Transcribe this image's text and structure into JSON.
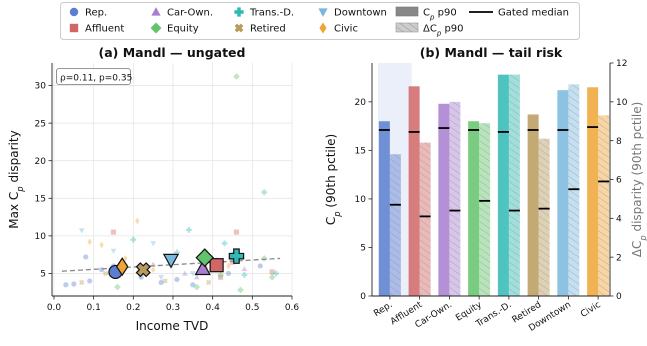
{
  "colors": {
    "Rep.": "#5b7fd0",
    "Affluent": "#d16667",
    "Car-Own.": "#a77ed0",
    "Equity": "#62c36a",
    "Trans.-D.": "#2fb9b4",
    "Retired": "#b89a5c",
    "Downtown": "#7ab7dd",
    "Civic": "#eea535"
  },
  "legend": {
    "groups": [
      {
        "label": "Rep.",
        "marker": "circle",
        "color": "Rep."
      },
      {
        "label": "Affluent",
        "marker": "square",
        "color": "Affluent"
      },
      {
        "label": "Car-Own.",
        "marker": "triangle-up",
        "color": "Car-Own."
      },
      {
        "label": "Equity",
        "marker": "diamond",
        "color": "Equity"
      },
      {
        "label": "Trans.-D.",
        "marker": "plus",
        "color": "Trans.-D."
      },
      {
        "label": "Retired",
        "marker": "x",
        "color": "Retired"
      },
      {
        "label": "Downtown",
        "marker": "triangle-down",
        "color": "Downtown"
      },
      {
        "label": "Civic",
        "marker": "diamond-thin",
        "color": "Civic"
      }
    ],
    "cp_label": "C",
    "cp_sub": "p",
    "cp_tail": " p90",
    "dcp_label": "ΔC",
    "dcp_sub": "p",
    "dcp_tail": " p90",
    "median_label": "Gated median"
  },
  "chart_data": [
    {
      "type": "scatter",
      "title": "(a) Mandl — ungated",
      "xlabel": "Income TVD",
      "ylabel_main": "Max C",
      "ylabel_sub": "p",
      "ylabel_tail": " disparity",
      "xlim": [
        -0.005,
        0.6
      ],
      "ylim": [
        2,
        33
      ],
      "xticks": [
        0.0,
        0.1,
        0.2,
        0.3,
        0.4,
        0.5,
        0.6
      ],
      "xtick_labels": [
        "0.0",
        "0.1",
        "0.2",
        "0.3",
        "0.4",
        "0.5",
        "0.6"
      ],
      "yticks": [
        5,
        10,
        15,
        20,
        25,
        30
      ],
      "ytick_labels": [
        "5",
        "10",
        "15",
        "20",
        "25",
        "30"
      ],
      "grid": true,
      "annotation": "ρ=0.11, p=0.35",
      "trend_line": {
        "x": [
          0.02,
          0.57
        ],
        "y": [
          5.3,
          7.0
        ]
      },
      "small_points": [
        {
          "g": "Rep.",
          "x": 0.03,
          "y": 3.5
        },
        {
          "g": "Rep.",
          "x": 0.05,
          "y": 3.6
        },
        {
          "g": "Rep.",
          "x": 0.09,
          "y": 4.0
        },
        {
          "g": "Rep.",
          "x": 0.12,
          "y": 5.5
        },
        {
          "g": "Rep.",
          "x": 0.15,
          "y": 6.0
        },
        {
          "g": "Rep.",
          "x": 0.22,
          "y": 4.5
        },
        {
          "g": "Rep.",
          "x": 0.27,
          "y": 3.8
        },
        {
          "g": "Rep.",
          "x": 0.31,
          "y": 4.2
        },
        {
          "g": "Rep.",
          "x": 0.35,
          "y": 3.5
        },
        {
          "g": "Rep.",
          "x": 0.44,
          "y": 5.0
        },
        {
          "g": "Rep.",
          "x": 0.52,
          "y": 6.0
        },
        {
          "g": "Rep.",
          "x": 0.08,
          "y": 7.2
        },
        {
          "g": "Affluent",
          "x": 0.15,
          "y": 10.5
        },
        {
          "g": "Affluent",
          "x": 0.38,
          "y": 5.8
        },
        {
          "g": "Affluent",
          "x": 0.45,
          "y": 6.5
        },
        {
          "g": "Affluent",
          "x": 0.46,
          "y": 10.5
        },
        {
          "g": "Affluent",
          "x": 0.42,
          "y": 4.5
        },
        {
          "g": "Affluent",
          "x": 0.55,
          "y": 5.2
        },
        {
          "g": "Car-Own.",
          "x": 0.25,
          "y": 6.2
        },
        {
          "g": "Car-Own.",
          "x": 0.33,
          "y": 5.0
        },
        {
          "g": "Car-Own.",
          "x": 0.41,
          "y": 6.8
        },
        {
          "g": "Car-Own.",
          "x": 0.36,
          "y": 4.5
        },
        {
          "g": "Car-Own.",
          "x": 0.48,
          "y": 5.6
        },
        {
          "g": "Equity",
          "x": 0.46,
          "y": 31.2
        },
        {
          "g": "Equity",
          "x": 0.38,
          "y": 8.0
        },
        {
          "g": "Equity",
          "x": 0.42,
          "y": 4.8
        },
        {
          "g": "Equity",
          "x": 0.55,
          "y": 4.5
        },
        {
          "g": "Equity",
          "x": 0.36,
          "y": 3.2
        },
        {
          "g": "Equity",
          "x": 0.47,
          "y": 2.8
        },
        {
          "g": "Equity",
          "x": 0.53,
          "y": 7.0
        },
        {
          "g": "Equity",
          "x": 0.16,
          "y": 3.2
        },
        {
          "g": "Trans.-D.",
          "x": 0.53,
          "y": 15.8
        },
        {
          "g": "Trans.-D.",
          "x": 0.34,
          "y": 10.8
        },
        {
          "g": "Trans.-D.",
          "x": 0.43,
          "y": 9.0
        },
        {
          "g": "Trans.-D.",
          "x": 0.48,
          "y": 4.8
        },
        {
          "g": "Trans.-D.",
          "x": 0.2,
          "y": 9.5
        },
        {
          "g": "Trans.-D.",
          "x": 0.31,
          "y": 7.8
        },
        {
          "g": "Trans.-D.",
          "x": 0.56,
          "y": 5.0
        },
        {
          "g": "Trans.-D.",
          "x": 0.45,
          "y": 7.5
        },
        {
          "g": "Retired",
          "x": 0.07,
          "y": 3.8
        },
        {
          "g": "Retired",
          "x": 0.13,
          "y": 5.0
        },
        {
          "g": "Retired",
          "x": 0.22,
          "y": 5.8
        },
        {
          "g": "Retired",
          "x": 0.28,
          "y": 4.0
        },
        {
          "g": "Retired",
          "x": 0.18,
          "y": 6.0
        },
        {
          "g": "Retired",
          "x": 0.39,
          "y": 3.8
        },
        {
          "g": "Downtown",
          "x": 0.07,
          "y": 10.7
        },
        {
          "g": "Downtown",
          "x": 0.15,
          "y": 8.0
        },
        {
          "g": "Downtown",
          "x": 0.25,
          "y": 9.0
        },
        {
          "g": "Downtown",
          "x": 0.3,
          "y": 6.5
        },
        {
          "g": "Downtown",
          "x": 0.27,
          "y": 4.5
        },
        {
          "g": "Downtown",
          "x": 0.35,
          "y": 5.0
        },
        {
          "g": "Civic",
          "x": 0.09,
          "y": 9.2
        },
        {
          "g": "Civic",
          "x": 0.12,
          "y": 8.8
        },
        {
          "g": "Civic",
          "x": 0.21,
          "y": 12.0
        },
        {
          "g": "Civic",
          "x": 0.18,
          "y": 7.0
        },
        {
          "g": "Civic",
          "x": 0.14,
          "y": 5.0
        },
        {
          "g": "Civic",
          "x": 0.25,
          "y": 5.5
        },
        {
          "g": "Civic",
          "x": 0.44,
          "y": 6.0
        }
      ],
      "centroids": [
        {
          "g": "Rep.",
          "marker": "circle",
          "x": 0.155,
          "y": 5.2
        },
        {
          "g": "Affluent",
          "marker": "square",
          "x": 0.41,
          "y": 6.1
        },
        {
          "g": "Car-Own.",
          "marker": "triangle-up",
          "x": 0.375,
          "y": 5.6
        },
        {
          "g": "Equity",
          "marker": "diamond",
          "x": 0.38,
          "y": 7.1
        },
        {
          "g": "Trans.-D.",
          "marker": "plus",
          "x": 0.46,
          "y": 7.3
        },
        {
          "g": "Retired",
          "marker": "x",
          "x": 0.225,
          "y": 5.5
        },
        {
          "g": "Downtown",
          "marker": "triangle-down",
          "x": 0.295,
          "y": 6.8
        },
        {
          "g": "Civic",
          "marker": "diamond-thin",
          "x": 0.172,
          "y": 5.9
        }
      ]
    },
    {
      "type": "bar",
      "title": "(b) Mandl — tail risk",
      "categories": [
        "Rep.",
        "Affluent",
        "Car-Own.",
        "Equity",
        "Trans.-D.",
        "Retired",
        "Downtown",
        "Civic"
      ],
      "ylabel_left_main": "C",
      "ylabel_left_sub": "p",
      "ylabel_left_tail": " (90th pctile)",
      "ylabel_right_main": "ΔC",
      "ylabel_right_sub": "p",
      "ylabel_right_tail": " disparity (90th pctile)",
      "ylim_left": [
        0,
        24
      ],
      "ylim_right": [
        0,
        12
      ],
      "yticks_left": [
        0,
        5,
        10,
        15,
        20
      ],
      "ytick_labels_left": [
        "0",
        "5",
        "10",
        "15",
        "20"
      ],
      "yticks_right": [
        0,
        2,
        4,
        6,
        8,
        10,
        12
      ],
      "ytick_labels_right": [
        "0",
        "2",
        "4",
        "6",
        "8",
        "10",
        "12"
      ],
      "highlight_category": "Rep.",
      "cp_p90": [
        18.0,
        21.6,
        19.8,
        18.0,
        22.8,
        18.7,
        21.2,
        21.5
      ],
      "cp_median": [
        17.1,
        16.9,
        17.3,
        17.1,
        16.9,
        17.1,
        17.1,
        17.4
      ],
      "dcp_p90": [
        7.3,
        7.9,
        10.0,
        8.9,
        11.4,
        8.1,
        10.9,
        9.3
      ],
      "dcp_median": [
        4.7,
        4.1,
        4.4,
        4.9,
        4.4,
        4.5,
        5.5,
        5.9
      ]
    }
  ]
}
